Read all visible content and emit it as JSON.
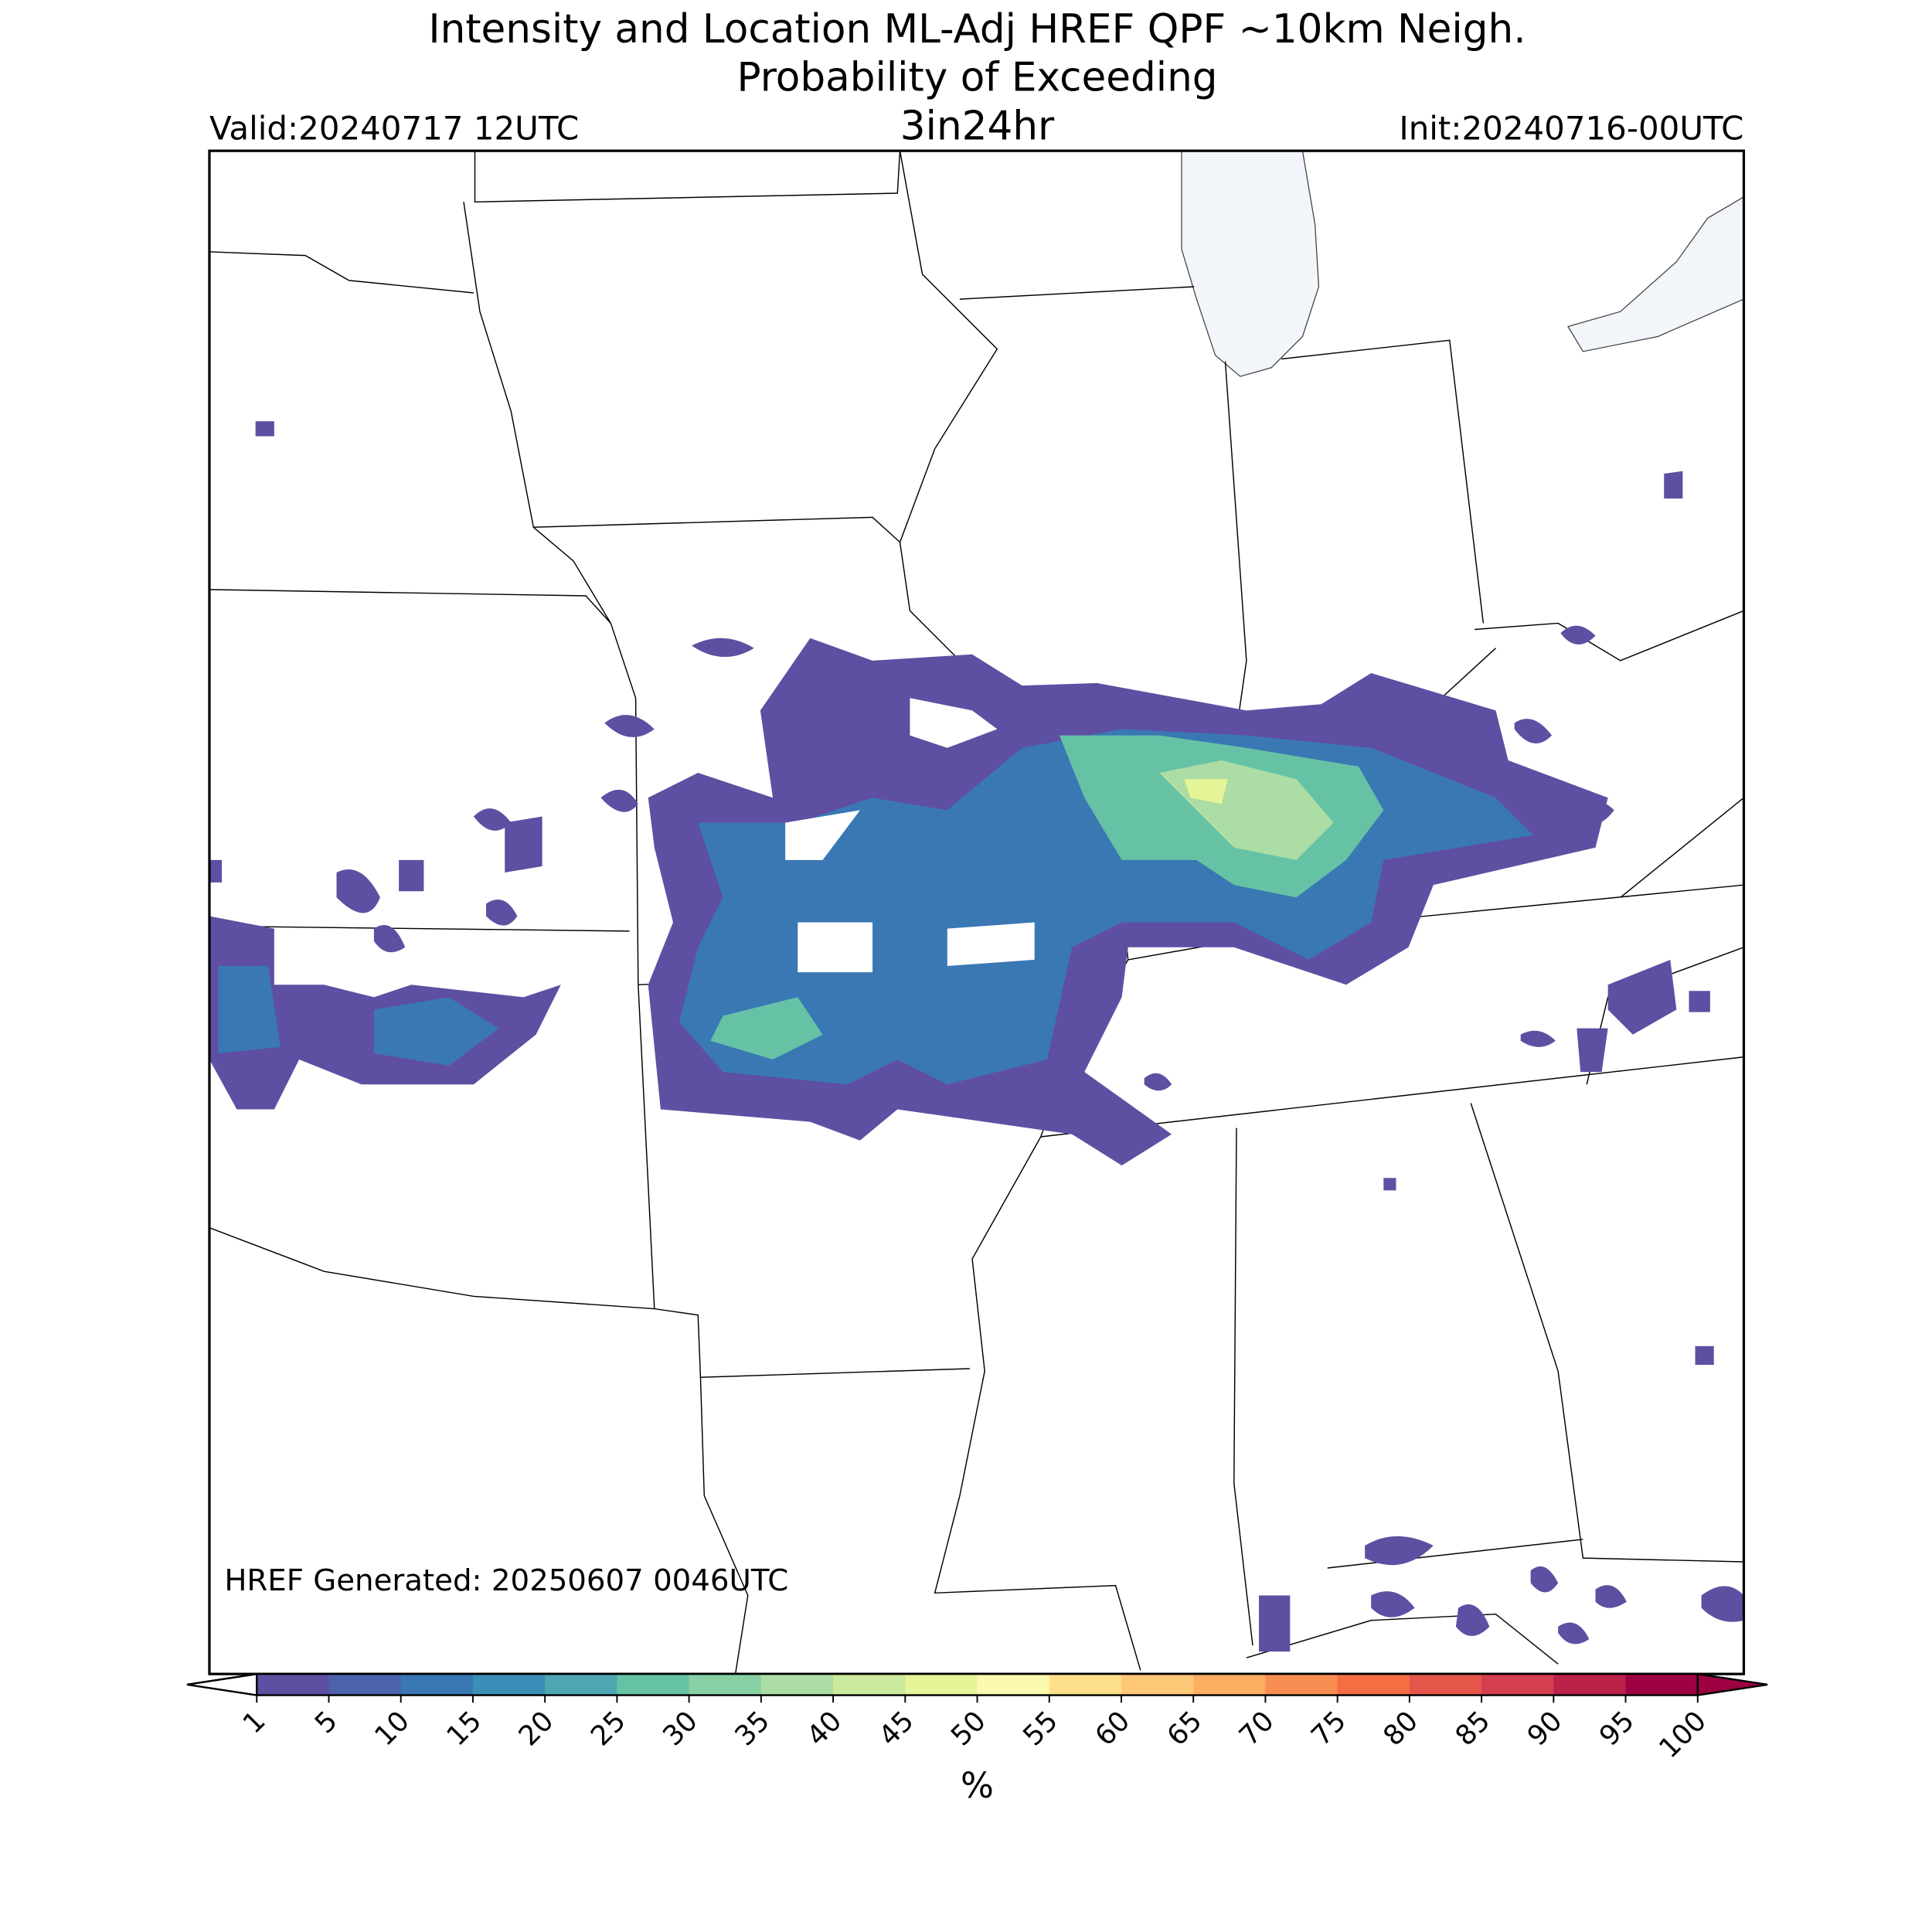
{
  "header": {
    "title": [
      "Intensity and Location ML-Adj HREF QPF ~10km Neigh.",
      "Probability of Exceeding"
    ],
    "valid": "Valid:20240717 12UTC",
    "threshold": "3in24hr",
    "init": "Init:20240716-00UTC"
  },
  "footer": {
    "generated": "HREF Generated: 20250607 0046UTC"
  },
  "colorbar": {
    "ticks": [
      1,
      5,
      10,
      15,
      20,
      25,
      30,
      35,
      40,
      45,
      50,
      55,
      60,
      65,
      70,
      75,
      80,
      85,
      90,
      95,
      100
    ],
    "colors": [
      "#5e4fa2",
      "#4c62ab",
      "#3a78b4",
      "#3a8fb8",
      "#4ea6b2",
      "#66c2a5",
      "#87d0a4",
      "#abdda4",
      "#cbea9e",
      "#e6f598",
      "#fbf8b0",
      "#fee08b",
      "#fdc877",
      "#fdae61",
      "#f98e52",
      "#f46d43",
      "#e4564a",
      "#d53e4f",
      "#bb2149",
      "#9e0142"
    ],
    "under_color": "#ffffff",
    "over_color": "#9e0142",
    "label": "%"
  }
}
